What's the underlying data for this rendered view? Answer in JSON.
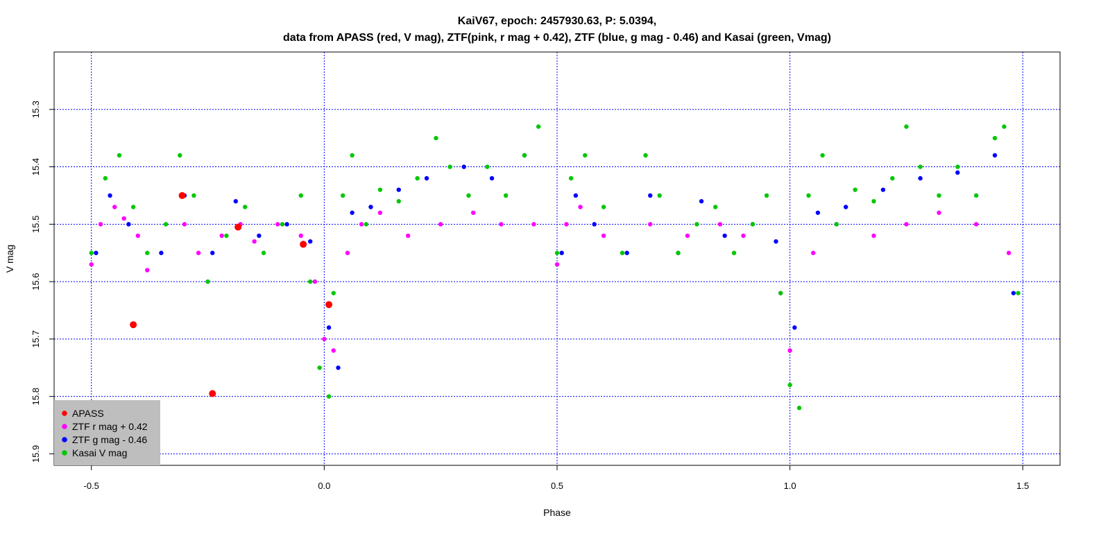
{
  "chart_data": {
    "type": "scatter",
    "title": "KaiV67, epoch: 2457930.63, P: 5.0394,",
    "subtitle": "data from APASS (red, V mag), ZTF(pink, r mag + 0.42), ZTF (blue, g mag - 0.46) and Kasai (green, Vmag)",
    "xlabel": "Phase",
    "ylabel": "V mag",
    "xlim": [
      -0.58,
      1.58
    ],
    "ylim": [
      15.92,
      15.2
    ],
    "y_reversed": true,
    "x_ticks": [
      -0.5,
      0.0,
      0.5,
      1.0,
      1.5
    ],
    "x_tick_labels": [
      "-0.5",
      "0.0",
      "0.5",
      "1.0",
      "1.5"
    ],
    "y_ticks": [
      15.3,
      15.4,
      15.5,
      15.6,
      15.7,
      15.8,
      15.9
    ],
    "y_tick_labels": [
      "15.3",
      "15.4",
      "15.5",
      "15.6",
      "15.7",
      "15.8",
      "15.9"
    ],
    "grid": true,
    "grid_color": "#0000ff",
    "legend_position": "bottom-left",
    "legend_bg": "#bebebe",
    "series": [
      {
        "name": "APASS",
        "color": "#ff0000",
        "points": [
          [
            -0.41,
            15.675
          ],
          [
            -0.305,
            15.45
          ],
          [
            -0.24,
            15.795
          ],
          [
            -0.185,
            15.505
          ],
          [
            -0.045,
            15.535
          ],
          [
            0.01,
            15.64
          ]
        ]
      },
      {
        "name": "ZTF r mag + 0.42",
        "color": "#ff00ff",
        "points": [
          [
            -0.5,
            15.57
          ],
          [
            -0.48,
            15.5
          ],
          [
            -0.45,
            15.47
          ],
          [
            -0.43,
            15.49
          ],
          [
            -0.4,
            15.52
          ],
          [
            -0.38,
            15.58
          ],
          [
            -0.3,
            15.5
          ],
          [
            -0.27,
            15.55
          ],
          [
            -0.22,
            15.52
          ],
          [
            -0.18,
            15.5
          ],
          [
            -0.15,
            15.53
          ],
          [
            -0.1,
            15.5
          ],
          [
            -0.05,
            15.52
          ],
          [
            -0.02,
            15.6
          ],
          [
            0.0,
            15.7
          ],
          [
            0.02,
            15.72
          ],
          [
            0.05,
            15.55
          ],
          [
            0.08,
            15.5
          ],
          [
            0.12,
            15.48
          ],
          [
            0.18,
            15.52
          ],
          [
            0.25,
            15.5
          ],
          [
            0.32,
            15.48
          ],
          [
            0.38,
            15.5
          ],
          [
            0.45,
            15.5
          ],
          [
            0.5,
            15.57
          ],
          [
            0.52,
            15.5
          ],
          [
            0.55,
            15.47
          ],
          [
            0.6,
            15.52
          ],
          [
            0.7,
            15.5
          ],
          [
            0.78,
            15.52
          ],
          [
            0.85,
            15.5
          ],
          [
            0.9,
            15.52
          ],
          [
            0.98,
            15.62
          ],
          [
            1.0,
            15.72
          ],
          [
            1.05,
            15.55
          ],
          [
            1.1,
            15.5
          ],
          [
            1.18,
            15.52
          ],
          [
            1.25,
            15.5
          ],
          [
            1.32,
            15.48
          ],
          [
            1.4,
            15.5
          ],
          [
            1.47,
            15.55
          ]
        ]
      },
      {
        "name": "ZTF g mag - 0.46",
        "color": "#0000ff",
        "points": [
          [
            -0.49,
            15.55
          ],
          [
            -0.46,
            15.45
          ],
          [
            -0.42,
            15.5
          ],
          [
            -0.35,
            15.55
          ],
          [
            -0.3,
            15.45
          ],
          [
            -0.24,
            15.55
          ],
          [
            -0.19,
            15.46
          ],
          [
            -0.14,
            15.52
          ],
          [
            -0.08,
            15.5
          ],
          [
            -0.03,
            15.53
          ],
          [
            0.01,
            15.68
          ],
          [
            0.03,
            15.75
          ],
          [
            0.06,
            15.48
          ],
          [
            0.1,
            15.47
          ],
          [
            0.16,
            15.44
          ],
          [
            0.22,
            15.42
          ],
          [
            0.3,
            15.4
          ],
          [
            0.36,
            15.42
          ],
          [
            0.43,
            15.38
          ],
          [
            0.51,
            15.55
          ],
          [
            0.54,
            15.45
          ],
          [
            0.58,
            15.5
          ],
          [
            0.65,
            15.55
          ],
          [
            0.7,
            15.45
          ],
          [
            0.76,
            15.55
          ],
          [
            0.81,
            15.46
          ],
          [
            0.86,
            15.52
          ],
          [
            0.92,
            15.5
          ],
          [
            0.97,
            15.53
          ],
          [
            1.01,
            15.68
          ],
          [
            1.06,
            15.48
          ],
          [
            1.12,
            15.47
          ],
          [
            1.2,
            15.44
          ],
          [
            1.28,
            15.42
          ],
          [
            1.36,
            15.41
          ],
          [
            1.44,
            15.38
          ],
          [
            1.48,
            15.62
          ]
        ]
      },
      {
        "name": "Kasai V mag",
        "color": "#00c800",
        "points": [
          [
            -0.5,
            15.55
          ],
          [
            -0.47,
            15.42
          ],
          [
            -0.44,
            15.38
          ],
          [
            -0.41,
            15.47
          ],
          [
            -0.38,
            15.55
          ],
          [
            -0.34,
            15.5
          ],
          [
            -0.31,
            15.38
          ],
          [
            -0.28,
            15.45
          ],
          [
            -0.25,
            15.6
          ],
          [
            -0.21,
            15.52
          ],
          [
            -0.17,
            15.47
          ],
          [
            -0.13,
            15.55
          ],
          [
            -0.09,
            15.5
          ],
          [
            -0.05,
            15.45
          ],
          [
            -0.03,
            15.6
          ],
          [
            -0.01,
            15.75
          ],
          [
            0.01,
            15.8
          ],
          [
            0.02,
            15.62
          ],
          [
            0.04,
            15.45
          ],
          [
            0.06,
            15.38
          ],
          [
            0.09,
            15.5
          ],
          [
            0.12,
            15.44
          ],
          [
            0.16,
            15.46
          ],
          [
            0.2,
            15.42
          ],
          [
            0.24,
            15.35
          ],
          [
            0.27,
            15.4
          ],
          [
            0.31,
            15.45
          ],
          [
            0.35,
            15.4
          ],
          [
            0.39,
            15.45
          ],
          [
            0.43,
            15.38
          ],
          [
            0.46,
            15.33
          ],
          [
            0.5,
            15.55
          ],
          [
            0.53,
            15.42
          ],
          [
            0.56,
            15.38
          ],
          [
            0.6,
            15.47
          ],
          [
            0.64,
            15.55
          ],
          [
            0.69,
            15.38
          ],
          [
            0.72,
            15.45
          ],
          [
            0.76,
            15.55
          ],
          [
            0.8,
            15.5
          ],
          [
            0.84,
            15.47
          ],
          [
            0.88,
            15.55
          ],
          [
            0.92,
            15.5
          ],
          [
            0.95,
            15.45
          ],
          [
            0.98,
            15.62
          ],
          [
            1.0,
            15.78
          ],
          [
            1.02,
            15.82
          ],
          [
            1.04,
            15.45
          ],
          [
            1.07,
            15.38
          ],
          [
            1.1,
            15.5
          ],
          [
            1.14,
            15.44
          ],
          [
            1.18,
            15.46
          ],
          [
            1.22,
            15.42
          ],
          [
            1.25,
            15.33
          ],
          [
            1.28,
            15.4
          ],
          [
            1.32,
            15.45
          ],
          [
            1.36,
            15.4
          ],
          [
            1.4,
            15.45
          ],
          [
            1.44,
            15.35
          ],
          [
            1.46,
            15.33
          ],
          [
            1.49,
            15.62
          ]
        ]
      }
    ]
  }
}
